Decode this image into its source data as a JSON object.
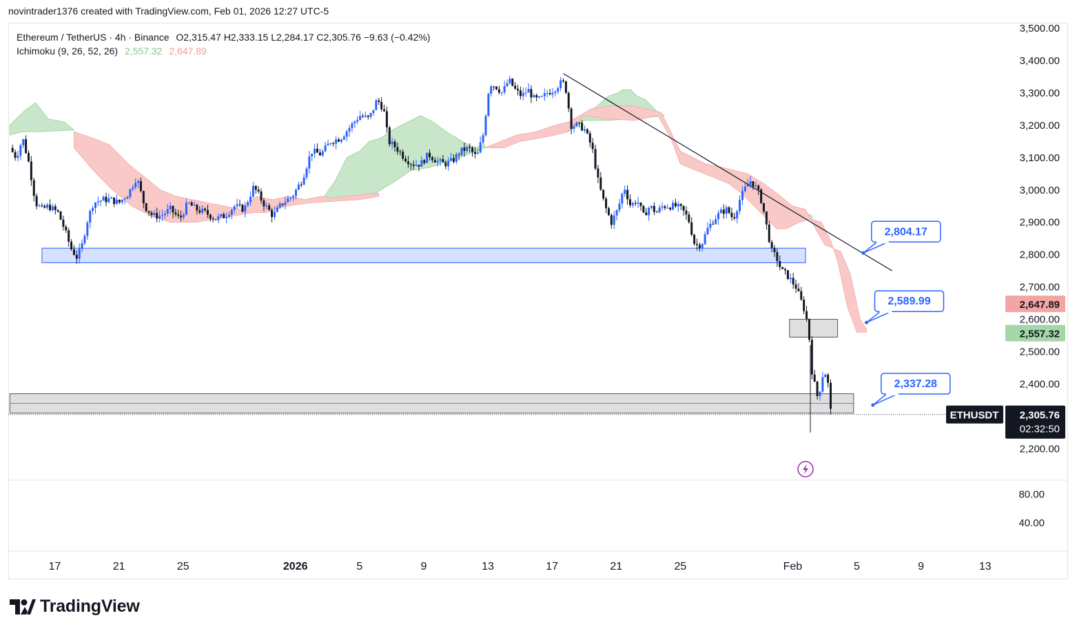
{
  "header": {
    "created_by": "novintrader1376 created with TradingView.com, Feb 01, 2026 12:27 UTC-5"
  },
  "legend": {
    "symbol": "Ethereum / TetherUS · 4h · Binance",
    "ohlc": "O2,315.47  H2,333.15  L2,284.17  C2,305.76  −9.63 (−0.42%)",
    "indicator": "Ichimoku (9, 26, 52, 26)",
    "tenkan_value": "2,557.32",
    "kijun_value": "2,647.89"
  },
  "colors": {
    "bull": "#2962ff",
    "bear": "#131722",
    "cloud_bull": "#c8e6c9",
    "cloud_bear": "#f8c9c7",
    "zone_blue": "#d4e1ff",
    "zone_blue_border": "#2962ff",
    "zone_gray": "#d9d9d9",
    "callout": "#2962ff"
  },
  "chart_data": {
    "type": "candlestick",
    "title": "Ethereum / TetherUS · 4h · Binance",
    "ticker": "ETHUSDT",
    "last_price": "2,305.76",
    "countdown": "02:32:50",
    "ylim": [
      2150,
      3520
    ],
    "y_ticks": [
      "3,500.00",
      "3,400.00",
      "3,300.00",
      "3,200.00",
      "3,100.00",
      "3,000.00",
      "2,900.00",
      "2,800.00",
      "2,700.00",
      "2,600.00",
      "2,500.00",
      "2,400.00",
      "2,200.00"
    ],
    "y_tick_values": [
      3500,
      3400,
      3300,
      3200,
      3100,
      3000,
      2900,
      2800,
      2700,
      2600,
      2500,
      2400,
      2200
    ],
    "price_tags": [
      {
        "label": "2,647.89",
        "value": 2647.89,
        "kind": "kijun"
      },
      {
        "label": "2,557.32",
        "value": 2557.32,
        "kind": "tenkan"
      }
    ],
    "sub_ticks": [
      "80.00",
      "40.00"
    ],
    "sub_tick_values": [
      80,
      40
    ],
    "sub_ylim": [
      0,
      100
    ],
    "x_ticks": [
      {
        "label": "17",
        "day": 0
      },
      {
        "label": "21",
        "day": 4
      },
      {
        "label": "25",
        "day": 8
      },
      {
        "label": "2026",
        "day": 15,
        "bold": true
      },
      {
        "label": "5",
        "day": 19
      },
      {
        "label": "9",
        "day": 23
      },
      {
        "label": "13",
        "day": 27
      },
      {
        "label": "17",
        "day": 31
      },
      {
        "label": "21",
        "day": 35
      },
      {
        "label": "25",
        "day": 39
      },
      {
        "label": "Feb",
        "day": 46
      },
      {
        "label": "5",
        "day": 50
      },
      {
        "label": "9",
        "day": 54
      },
      {
        "label": "13",
        "day": 58
      }
    ],
    "x_range_days": [
      -2.8,
      60.5
    ],
    "close_path": [
      [
        -2.8,
        3130
      ],
      [
        -2.4,
        3100
      ],
      [
        -2.0,
        3160
      ],
      [
        -1.6,
        3080
      ],
      [
        -1.2,
        2960
      ],
      [
        -0.8,
        2940
      ],
      [
        -0.4,
        2950
      ],
      [
        0.2,
        2930
      ],
      [
        0.6,
        2880
      ],
      [
        1.0,
        2820
      ],
      [
        1.4,
        2790
      ],
      [
        1.7,
        2830
      ],
      [
        2.0,
        2900
      ],
      [
        2.4,
        2960
      ],
      [
        3.0,
        2970
      ],
      [
        3.5,
        2970
      ],
      [
        4.0,
        2960
      ],
      [
        4.6,
        2990
      ],
      [
        5.1,
        3040
      ],
      [
        5.6,
        2950
      ],
      [
        6.1,
        2920
      ],
      [
        6.6,
        2920
      ],
      [
        7.2,
        2940
      ],
      [
        7.8,
        2910
      ],
      [
        8.3,
        2960
      ],
      [
        8.8,
        2940
      ],
      [
        9.4,
        2930
      ],
      [
        10.0,
        2910
      ],
      [
        10.6,
        2920
      ],
      [
        11.2,
        2950
      ],
      [
        11.8,
        2940
      ],
      [
        12.4,
        3010
      ],
      [
        13.0,
        2960
      ],
      [
        13.6,
        2920
      ],
      [
        14.2,
        2960
      ],
      [
        14.8,
        2980
      ],
      [
        15.4,
        3030
      ],
      [
        16.0,
        3120
      ],
      [
        16.6,
        3110
      ],
      [
        17.2,
        3150
      ],
      [
        17.8,
        3160
      ],
      [
        18.5,
        3200
      ],
      [
        19.0,
        3230
      ],
      [
        19.6,
        3220
      ],
      [
        20.1,
        3280
      ],
      [
        20.5,
        3250
      ],
      [
        20.8,
        3150
      ],
      [
        21.3,
        3130
      ],
      [
        21.8,
        3100
      ],
      [
        22.3,
        3080
      ],
      [
        22.8,
        3080
      ],
      [
        23.3,
        3110
      ],
      [
        23.8,
        3090
      ],
      [
        24.3,
        3080
      ],
      [
        24.8,
        3090
      ],
      [
        25.3,
        3120
      ],
      [
        25.8,
        3130
      ],
      [
        26.3,
        3100
      ],
      [
        26.7,
        3170
      ],
      [
        27.1,
        3330
      ],
      [
        27.5,
        3320
      ],
      [
        27.9,
        3300
      ],
      [
        28.3,
        3340
      ],
      [
        28.7,
        3310
      ],
      [
        29.1,
        3290
      ],
      [
        29.5,
        3310
      ],
      [
        29.9,
        3280
      ],
      [
        30.3,
        3280
      ],
      [
        30.7,
        3300
      ],
      [
        31.1,
        3310
      ],
      [
        31.5,
        3330
      ],
      [
        31.8,
        3330
      ],
      [
        32.2,
        3200
      ],
      [
        32.6,
        3200
      ],
      [
        33.0,
        3190
      ],
      [
        33.5,
        3130
      ],
      [
        33.9,
        3020
      ],
      [
        34.3,
        2950
      ],
      [
        34.7,
        2900
      ],
      [
        35.1,
        2940
      ],
      [
        35.5,
        3010
      ],
      [
        35.9,
        2950
      ],
      [
        36.3,
        2970
      ],
      [
        36.7,
        2920
      ],
      [
        37.1,
        2950
      ],
      [
        37.5,
        2930
      ],
      [
        37.9,
        2950
      ],
      [
        38.3,
        2950
      ],
      [
        38.7,
        2950
      ],
      [
        39.1,
        2940
      ],
      [
        39.5,
        2910
      ],
      [
        39.9,
        2830
      ],
      [
        40.3,
        2830
      ],
      [
        40.7,
        2880
      ],
      [
        41.1,
        2910
      ],
      [
        41.5,
        2930
      ],
      [
        41.9,
        2940
      ],
      [
        42.3,
        2910
      ],
      [
        42.7,
        2970
      ],
      [
        43.1,
        3010
      ],
      [
        43.4,
        3030
      ],
      [
        43.8,
        3000
      ],
      [
        44.1,
        2960
      ],
      [
        44.4,
        2880
      ],
      [
        44.7,
        2810
      ],
      [
        45.0,
        2790
      ],
      [
        45.3,
        2750
      ],
      [
        45.6,
        2740
      ],
      [
        45.9,
        2720
      ],
      [
        46.2,
        2700
      ],
      [
        46.5,
        2660
      ],
      [
        46.8,
        2620
      ],
      [
        47.0,
        2560
      ],
      [
        47.2,
        2440
      ],
      [
        47.4,
        2390
      ],
      [
        47.6,
        2350
      ],
      [
        47.8,
        2420
      ],
      [
        48.0,
        2440
      ],
      [
        48.2,
        2400
      ],
      [
        48.4,
        2300
      ]
    ],
    "cloud_bull_regions": [
      {
        "upper": [
          [
            -2.8,
            3200
          ],
          [
            -2,
            3240
          ],
          [
            -1.2,
            3270
          ],
          [
            -0.4,
            3220
          ],
          [
            0.6,
            3210
          ],
          [
            1.2,
            3185
          ]
        ],
        "lower": [
          [
            1.2,
            3185
          ],
          [
            -1,
            3180
          ],
          [
            -2,
            3180
          ],
          [
            -2.8,
            3170
          ]
        ]
      },
      {
        "upper": [
          [
            6.6,
            2935
          ],
          [
            7.6,
            2940
          ],
          [
            8.4,
            2960
          ],
          [
            9.2,
            2920
          ],
          [
            10.4,
            2940
          ],
          [
            11.0,
            2935
          ]
        ],
        "lower": [
          [
            11.0,
            2930
          ],
          [
            9.6,
            2915
          ],
          [
            8.4,
            2915
          ],
          [
            7.6,
            2920
          ],
          [
            6.6,
            2930
          ]
        ]
      },
      {
        "upper": [
          [
            16.8,
            2980
          ],
          [
            17.5,
            3030
          ],
          [
            18.2,
            3100
          ],
          [
            19.0,
            3120
          ],
          [
            19.6,
            3150
          ],
          [
            20.3,
            3160
          ],
          [
            21.2,
            3190
          ],
          [
            22.0,
            3210
          ],
          [
            22.8,
            3230
          ],
          [
            23.6,
            3210
          ],
          [
            24.4,
            3180
          ],
          [
            25.4,
            3150
          ],
          [
            26.2,
            3130
          ],
          [
            26.8,
            3140
          ]
        ],
        "lower": [
          [
            26.8,
            3130
          ],
          [
            25.8,
            3110
          ],
          [
            24.6,
            3090
          ],
          [
            23.4,
            3070
          ],
          [
            22.2,
            3060
          ],
          [
            21.0,
            3020
          ],
          [
            20.0,
            2990
          ],
          [
            18.8,
            2975
          ],
          [
            17.6,
            2970
          ],
          [
            16.8,
            2975
          ]
        ]
      },
      {
        "upper": [
          [
            32.0,
            3180
          ],
          [
            33.0,
            3230
          ],
          [
            33.8,
            3260
          ],
          [
            34.5,
            3290
          ],
          [
            35.1,
            3300
          ],
          [
            35.4,
            3310
          ],
          [
            35.9,
            3310
          ],
          [
            36.3,
            3290
          ],
          [
            36.8,
            3280
          ],
          [
            37.6,
            3240
          ],
          [
            38.0,
            3230
          ]
        ],
        "lower": [
          [
            38.0,
            3230
          ],
          [
            36.2,
            3220
          ],
          [
            34.4,
            3215
          ],
          [
            33.0,
            3215
          ],
          [
            32.0,
            3180
          ]
        ]
      },
      {
        "upper": [
          [
            42.4,
            3020
          ],
          [
            42.8,
            3030
          ],
          [
            43.1,
            3040
          ],
          [
            43.6,
            3020
          ],
          [
            44.2,
            2980
          ],
          [
            44.8,
            2960
          ],
          [
            45.2,
            2960
          ],
          [
            45.5,
            2950
          ],
          [
            46.0,
            2940
          ],
          [
            46.4,
            2940
          ],
          [
            46.8,
            2930
          ],
          [
            47.2,
            2920
          ]
        ],
        "lower": [
          [
            47.2,
            2910
          ],
          [
            46.6,
            2910
          ],
          [
            46.0,
            2900
          ],
          [
            45.4,
            2890
          ],
          [
            44.8,
            2890
          ],
          [
            44.2,
            2920
          ],
          [
            43.6,
            2960
          ],
          [
            43.0,
            2990
          ],
          [
            42.4,
            3010
          ]
        ]
      }
    ],
    "cloud_bear_regions": [
      {
        "upper": [
          [
            1.2,
            3180
          ],
          [
            2.4,
            3160
          ],
          [
            3.4,
            3140
          ],
          [
            4.6,
            3080
          ],
          [
            5.6,
            3040
          ],
          [
            6.6,
            3000
          ],
          [
            7.6,
            2980
          ],
          [
            8.6,
            2970
          ],
          [
            9.6,
            2960
          ],
          [
            10.6,
            2950
          ],
          [
            11.6,
            2940
          ],
          [
            12.6,
            2980
          ],
          [
            13.6,
            2970
          ],
          [
            14.6,
            2980
          ],
          [
            15.6,
            2970
          ],
          [
            16.6,
            2980
          ],
          [
            17.4,
            2975
          ],
          [
            18.2,
            2980
          ],
          [
            19.0,
            2985
          ],
          [
            20.2,
            2990
          ]
        ],
        "lower": [
          [
            20.2,
            2980
          ],
          [
            19.0,
            2970
          ],
          [
            17.4,
            2965
          ],
          [
            16.0,
            2960
          ],
          [
            14.4,
            2950
          ],
          [
            13.2,
            2930
          ],
          [
            12.4,
            2930
          ],
          [
            11.2,
            2920
          ],
          [
            10.0,
            2910
          ],
          [
            8.8,
            2900
          ],
          [
            7.2,
            2900
          ],
          [
            6.0,
            2920
          ],
          [
            4.8,
            2950
          ],
          [
            3.6,
            3000
          ],
          [
            2.4,
            3060
          ],
          [
            1.2,
            3130
          ]
        ]
      },
      {
        "upper": [
          [
            26.8,
            3130
          ],
          [
            27.8,
            3150
          ],
          [
            28.8,
            3170
          ],
          [
            30.0,
            3180
          ],
          [
            31.2,
            3200
          ],
          [
            32.0,
            3210
          ],
          [
            33.4,
            3250
          ],
          [
            34.6,
            3260
          ],
          [
            36.0,
            3260
          ],
          [
            37.8,
            3240
          ],
          [
            38.4,
            3180
          ],
          [
            39.0,
            3120
          ],
          [
            39.8,
            3100
          ],
          [
            40.6,
            3080
          ],
          [
            41.6,
            3070
          ],
          [
            42.4,
            3060
          ],
          [
            43.2,
            3050
          ],
          [
            44.2,
            3020
          ],
          [
            45.0,
            2990
          ],
          [
            46.0,
            2950
          ],
          [
            46.8,
            2940
          ],
          [
            47.2,
            2900
          ],
          [
            48.0,
            2830
          ],
          [
            49.0,
            2810
          ],
          [
            49.6,
            2740
          ],
          [
            50.2,
            2600
          ],
          [
            50.6,
            2570
          ]
        ],
        "lower": [
          [
            50.6,
            2560
          ],
          [
            50.0,
            2560
          ],
          [
            49.4,
            2640
          ],
          [
            48.8,
            2780
          ],
          [
            48.4,
            2840
          ],
          [
            47.8,
            2900
          ],
          [
            47.2,
            2910
          ],
          [
            46.4,
            2900
          ],
          [
            45.6,
            2880
          ],
          [
            45.0,
            2880
          ],
          [
            44.2,
            2920
          ],
          [
            43.6,
            2950
          ],
          [
            42.8,
            2990
          ],
          [
            42.0,
            3020
          ],
          [
            41.0,
            3040
          ],
          [
            40.0,
            3060
          ],
          [
            39.0,
            3080
          ],
          [
            38.4,
            3160
          ],
          [
            37.6,
            3230
          ],
          [
            36.2,
            3215
          ],
          [
            34.4,
            3220
          ],
          [
            33.0,
            3230
          ],
          [
            32.0,
            3180
          ],
          [
            31.2,
            3170
          ],
          [
            30.2,
            3160
          ],
          [
            29.0,
            3150
          ],
          [
            28.0,
            3130
          ],
          [
            26.8,
            3130
          ]
        ]
      }
    ],
    "zones": [
      {
        "name": "demand-zone-blue",
        "top": 2820,
        "bottom": 2775,
        "x0": -0.8,
        "x1": 46.8,
        "style": "blue"
      },
      {
        "name": "zone-gray-mid",
        "top": 2600,
        "bottom": 2545,
        "x0": 45.8,
        "x1": 48.8,
        "style": "gray"
      },
      {
        "name": "support-zone-gray",
        "top": 2370,
        "bottom": 2310,
        "x0": -2.8,
        "x1": 49.8,
        "style": "gray"
      }
    ],
    "trendline": {
      "from": [
        31.7,
        3360
      ],
      "to": [
        52.2,
        2750
      ]
    },
    "callouts": [
      {
        "label": "2,804.17",
        "value": 2804.17,
        "anchor_day": 50.4,
        "anchor_price": 2805
      },
      {
        "label": "2,589.99",
        "value": 2589.99,
        "anchor_day": 50.6,
        "anchor_price": 2590
      },
      {
        "label": "2,337.28",
        "value": 2337.28,
        "anchor_day": 51.0,
        "anchor_price": 2335
      }
    ]
  },
  "footer": {
    "brand": "TradingView"
  }
}
